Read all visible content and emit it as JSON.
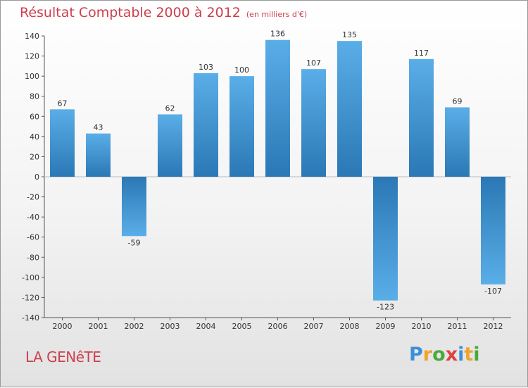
{
  "header": {
    "title": "Résultat Comptable 2000 à 2012",
    "subtitle": "(en milliers d'€)"
  },
  "footer": {
    "place": "LA GENêTE",
    "logo": "Proxiti"
  },
  "colors": {
    "title": "#cc3f4e",
    "bar_dark": "#2a78b5",
    "bar_light": "#5aaee8",
    "axis": "#555555"
  },
  "chart_data": {
    "type": "bar",
    "title": "Résultat Comptable 2000 à 2012",
    "ylabel": "en milliers d'€",
    "xlabel": "",
    "categories": [
      "2000",
      "2001",
      "2002",
      "2003",
      "2004",
      "2005",
      "2006",
      "2007",
      "2008",
      "2009",
      "2010",
      "2011",
      "2012"
    ],
    "values": [
      67,
      43,
      -59,
      62,
      103,
      100,
      136,
      107,
      135,
      -123,
      117,
      69,
      -107
    ],
    "ylim": [
      -140,
      140
    ],
    "yticks": [
      140,
      120,
      100,
      80,
      60,
      40,
      20,
      0,
      -20,
      -40,
      -60,
      -80,
      -100,
      -120,
      -140
    ],
    "grid": false
  }
}
